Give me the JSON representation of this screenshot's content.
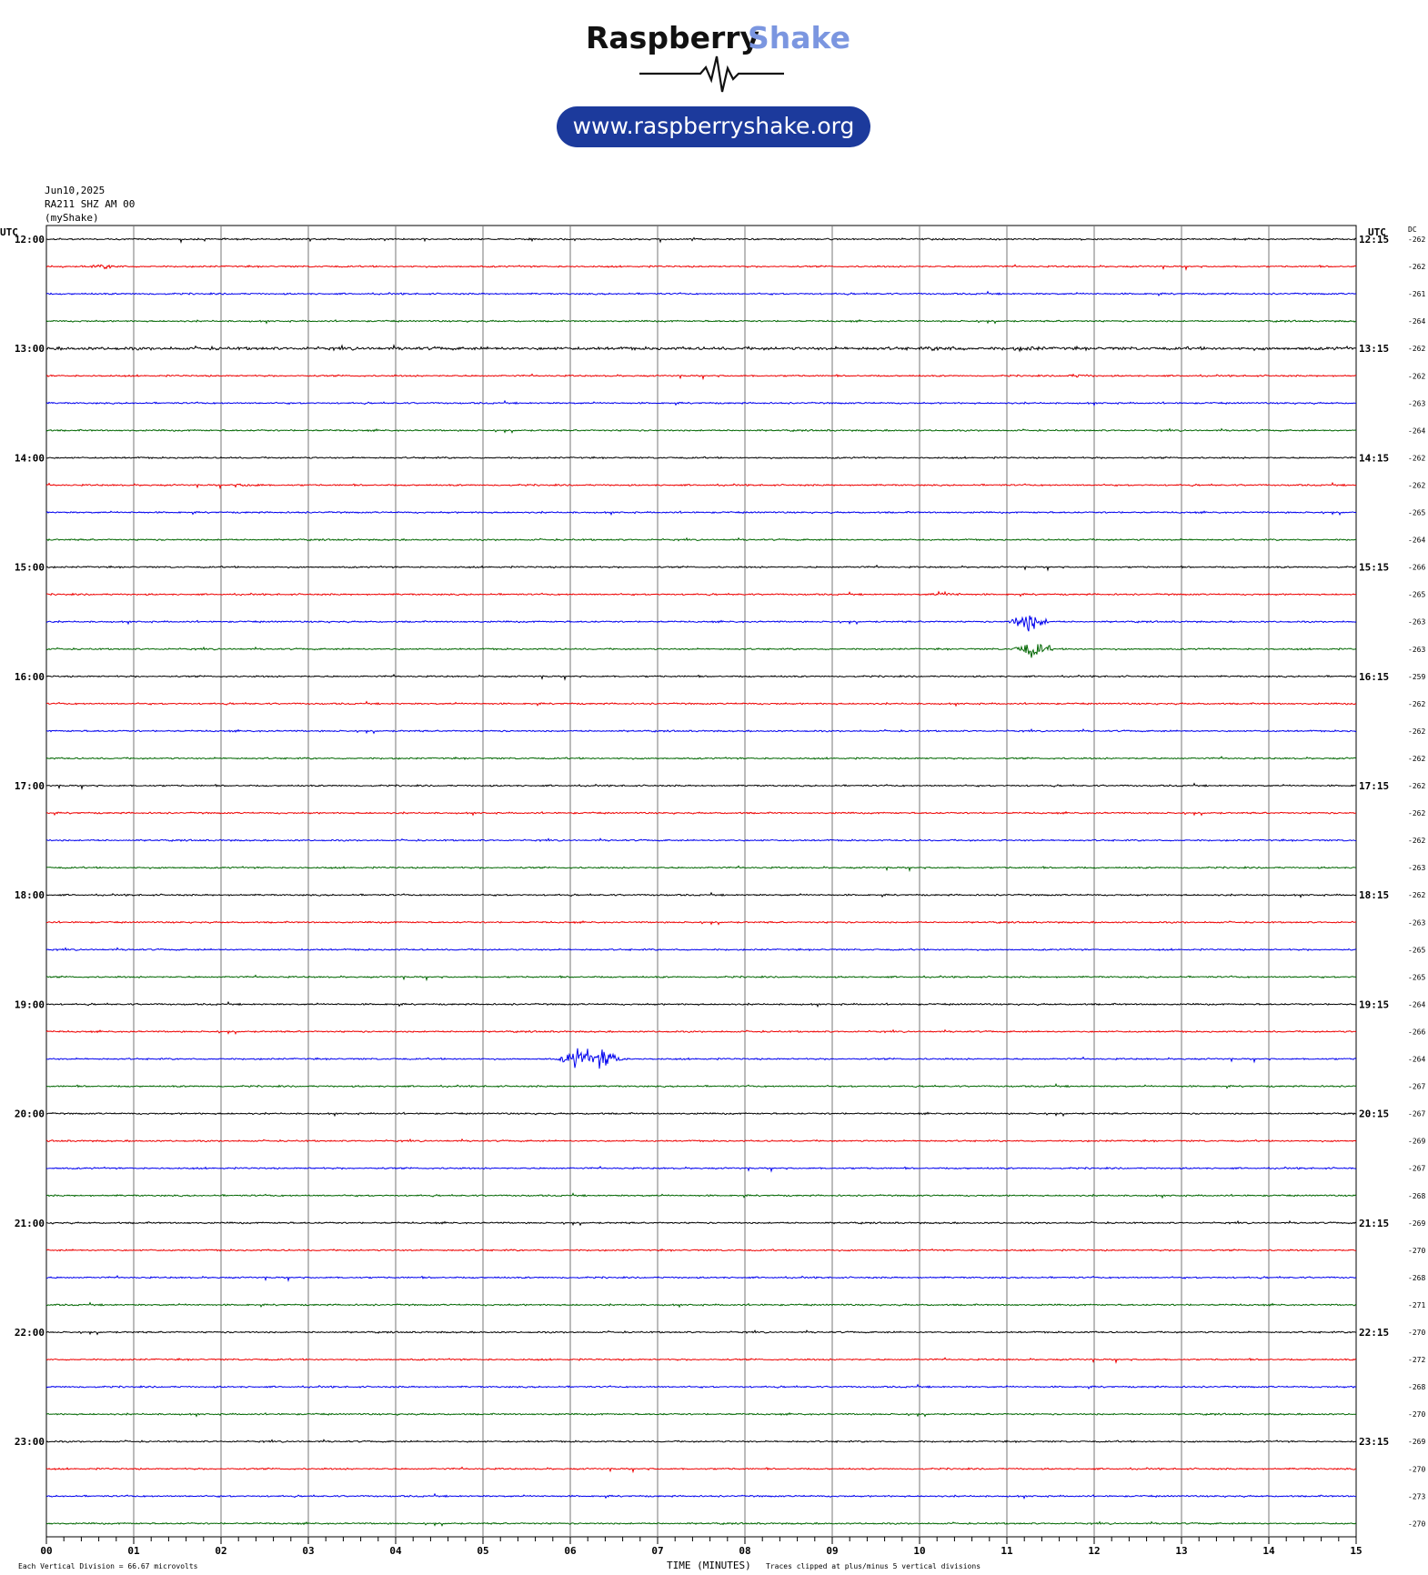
{
  "logo": {
    "word1": "Raspberry",
    "word2": "Shake",
    "url": "www.raspberryshake.org",
    "colors": {
      "word1": "#111111",
      "word2": "#7b96e0",
      "pill": "#1c3a9c"
    }
  },
  "header": {
    "date": "Jun10,2025",
    "station": "RA211 SHZ AM 00",
    "network": "(myShake)"
  },
  "left_axis_title": "UTC",
  "right_axis_title": "UTC",
  "dc_title": "DC",
  "footer": {
    "division_note": "Each Vertical Division =   66.67 microvolts",
    "xlabel": "TIME (MINUTES)",
    "clip_note": "Traces clipped at plus/minus 5 vertical divisions"
  },
  "chart_data": {
    "type": "line",
    "title": "",
    "xlabel": "TIME (MINUTES)",
    "xlim": [
      0,
      15
    ],
    "x_ticks": [
      "00",
      "01",
      "02",
      "03",
      "04",
      "05",
      "06",
      "07",
      "08",
      "09",
      "10",
      "11",
      "12",
      "13",
      "14",
      "15"
    ],
    "line_colors": [
      "#000000",
      "#ee0000",
      "#0000ee",
      "#006600"
    ],
    "hour_labels_left": [
      "12:00",
      "13:00",
      "14:00",
      "15:00",
      "16:00",
      "17:00",
      "18:00",
      "19:00",
      "20:00",
      "21:00",
      "22:00",
      "23:00"
    ],
    "hour_labels_right": [
      "12:15",
      "13:15",
      "14:15",
      "15:15",
      "16:15",
      "17:15",
      "18:15",
      "19:15",
      "20:15",
      "21:15",
      "22:15",
      "23:15"
    ],
    "dc_offsets": [
      "-262",
      "-262",
      "-261",
      "-264",
      "-262",
      "-262",
      "-263",
      "-264",
      "-262",
      "-262",
      "-265",
      "-264",
      "-266",
      "-265",
      "-263",
      "-263",
      "-259",
      "-262",
      "-262",
      "-262",
      "-262",
      "-262",
      "-262",
      "-263",
      "-262",
      "-263",
      "-265",
      "-265",
      "-264",
      "-266",
      "-264",
      "-267",
      "-267",
      "-269",
      "-267",
      "-268",
      "-269",
      "-270",
      "-268",
      "-271",
      "-270",
      "-272",
      "-268",
      "-270",
      "-269",
      "-270",
      "-273",
      "-270"
    ],
    "events": [
      {
        "trace": 1,
        "minute": 0.7,
        "amplitude": 0.7
      },
      {
        "trace": 4,
        "minute": 10.3,
        "amplitude": 0.6
      },
      {
        "trace": 4,
        "minute": 11.2,
        "amplitude": 0.6
      },
      {
        "trace": 5,
        "minute": 11.8,
        "amplitude": 0.5
      },
      {
        "trace": 9,
        "minute": 2.3,
        "amplitude": 0.6
      },
      {
        "trace": 13,
        "minute": 10.3,
        "amplitude": 0.7
      },
      {
        "trace": 14,
        "minute": 11.25,
        "amplitude": 5.0
      },
      {
        "trace": 15,
        "minute": 11.3,
        "amplitude": 4.0
      },
      {
        "trace": 30,
        "minute": 6.1,
        "amplitude": 5.0
      },
      {
        "trace": 30,
        "minute": 6.4,
        "amplitude": 5.0
      }
    ]
  }
}
